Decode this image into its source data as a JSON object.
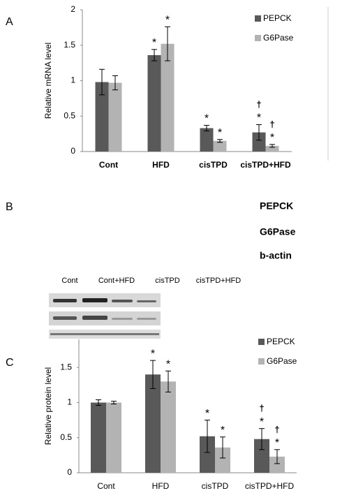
{
  "panels": {
    "a": "A",
    "b": "B",
    "c": "C"
  },
  "blot": {
    "rows": [
      "PEPCK",
      "G6Pase",
      "b-actin"
    ],
    "lanes": [
      "Cont",
      "Cont+HFD",
      "cisTPD",
      "cisTPD+HFD"
    ]
  },
  "chart_data": [
    {
      "type": "bar",
      "y_label": "Relative mRNA level",
      "categories": [
        "Cont",
        "HFD",
        "cisTPD",
        "cisTPD+HFD"
      ],
      "series": [
        {
          "name": "PEPCK",
          "color": "#595959",
          "values": [
            0.98,
            1.36,
            0.33,
            0.27
          ],
          "errors": [
            0.18,
            0.08,
            0.04,
            0.11
          ],
          "significance": [
            null,
            "*",
            "*",
            "*"
          ],
          "dagger": [
            null,
            null,
            null,
            "†"
          ]
        },
        {
          "name": "G6Pase",
          "color": "#b3b3b3",
          "values": [
            0.97,
            1.52,
            0.15,
            0.08
          ],
          "errors": [
            0.1,
            0.24,
            0.02,
            0.02
          ],
          "significance": [
            null,
            "*",
            "*",
            "*"
          ],
          "dagger": [
            null,
            null,
            null,
            "†"
          ]
        }
      ],
      "ylim": [
        0,
        2
      ],
      "yticks": [
        0,
        0.5,
        1,
        1.5,
        2
      ],
      "grid": false,
      "legend": "right"
    },
    {
      "type": "bar",
      "y_label": "Relative protein level",
      "categories": [
        "Cont",
        "HFD",
        "cisTPD",
        "cisTPD+HFD"
      ],
      "series": [
        {
          "name": "PEPCK",
          "color": "#595959",
          "values": [
            1.0,
            1.4,
            0.52,
            0.48
          ],
          "errors": [
            0.04,
            0.2,
            0.23,
            0.15
          ],
          "significance": [
            null,
            "*",
            "*",
            "*"
          ],
          "dagger": [
            null,
            null,
            null,
            "†"
          ]
        },
        {
          "name": "G6Pase",
          "color": "#b3b3b3",
          "values": [
            1.0,
            1.3,
            0.36,
            0.23
          ],
          "errors": [
            0.02,
            0.15,
            0.15,
            0.1
          ],
          "significance": [
            null,
            "*",
            "*",
            "*"
          ],
          "dagger": [
            null,
            null,
            null,
            "†"
          ]
        }
      ],
      "ylim": [
        0,
        1.9
      ],
      "yticks": [
        0,
        0.5,
        1,
        1.5
      ],
      "grid": false,
      "legend": "right"
    }
  ]
}
